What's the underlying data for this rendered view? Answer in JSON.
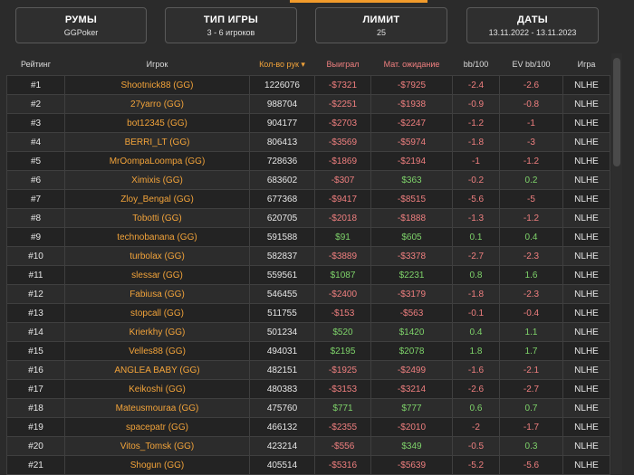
{
  "filters": [
    {
      "title": "РУМЫ",
      "value": "GGPoker"
    },
    {
      "title": "ТИП ИГРЫ",
      "value": "3 - 6 игроков"
    },
    {
      "title": "ЛИМИТ",
      "value": "25"
    },
    {
      "title": "ДАТЫ",
      "value": "13.11.2022 - 13.11.2023"
    }
  ],
  "columns": {
    "rank": "Рейтинг",
    "player": "Игрок",
    "hands": "Кол-во рук",
    "hands_sort": "▾",
    "won": "Выиграл",
    "ev": "Мат. ожидание",
    "bb100": "bb/100",
    "evbb100": "EV bb/100",
    "game": "Игра"
  },
  "colors": {
    "accent": "#f29b2b",
    "negative": "#ef7f7f",
    "positive": "#7ed36a"
  },
  "rows": [
    {
      "rank": "#1",
      "player": "Shootnick88 (GG)",
      "hands": "1226076",
      "won": "-$7321",
      "ev": "-$7925",
      "bb": "-2.4",
      "evbb": "-2.6",
      "game": "NLHE"
    },
    {
      "rank": "#2",
      "player": "27yarro (GG)",
      "hands": "988704",
      "won": "-$2251",
      "ev": "-$1938",
      "bb": "-0.9",
      "evbb": "-0.8",
      "game": "NLHE"
    },
    {
      "rank": "#3",
      "player": "bot12345 (GG)",
      "hands": "904177",
      "won": "-$2703",
      "ev": "-$2247",
      "bb": "-1.2",
      "evbb": "-1",
      "game": "NLHE"
    },
    {
      "rank": "#4",
      "player": "BERRI_LT (GG)",
      "hands": "806413",
      "won": "-$3569",
      "ev": "-$5974",
      "bb": "-1.8",
      "evbb": "-3",
      "game": "NLHE"
    },
    {
      "rank": "#5",
      "player": "MrOompaLoompa (GG)",
      "hands": "728636",
      "won": "-$1869",
      "ev": "-$2194",
      "bb": "-1",
      "evbb": "-1.2",
      "game": "NLHE"
    },
    {
      "rank": "#6",
      "player": "Ximixis (GG)",
      "hands": "683602",
      "won": "-$307",
      "ev": "$363",
      "bb": "-0.2",
      "evbb": "0.2",
      "game": "NLHE"
    },
    {
      "rank": "#7",
      "player": "Zloy_Bengal (GG)",
      "hands": "677368",
      "won": "-$9417",
      "ev": "-$8515",
      "bb": "-5.6",
      "evbb": "-5",
      "game": "NLHE"
    },
    {
      "rank": "#8",
      "player": "Tobotti (GG)",
      "hands": "620705",
      "won": "-$2018",
      "ev": "-$1888",
      "bb": "-1.3",
      "evbb": "-1.2",
      "game": "NLHE"
    },
    {
      "rank": "#9",
      "player": "technobanana (GG)",
      "hands": "591588",
      "won": "$91",
      "ev": "$605",
      "bb": "0.1",
      "evbb": "0.4",
      "game": "NLHE"
    },
    {
      "rank": "#10",
      "player": "turbolax (GG)",
      "hands": "582837",
      "won": "-$3889",
      "ev": "-$3378",
      "bb": "-2.7",
      "evbb": "-2.3",
      "game": "NLHE"
    },
    {
      "rank": "#11",
      "player": "slessar (GG)",
      "hands": "559561",
      "won": "$1087",
      "ev": "$2231",
      "bb": "0.8",
      "evbb": "1.6",
      "game": "NLHE"
    },
    {
      "rank": "#12",
      "player": "Fabiusa (GG)",
      "hands": "546455",
      "won": "-$2400",
      "ev": "-$3179",
      "bb": "-1.8",
      "evbb": "-2.3",
      "game": "NLHE"
    },
    {
      "rank": "#13",
      "player": "stopcall (GG)",
      "hands": "511755",
      "won": "-$153",
      "ev": "-$563",
      "bb": "-0.1",
      "evbb": "-0.4",
      "game": "NLHE"
    },
    {
      "rank": "#14",
      "player": "Krierkhy (GG)",
      "hands": "501234",
      "won": "$520",
      "ev": "$1420",
      "bb": "0.4",
      "evbb": "1.1",
      "game": "NLHE"
    },
    {
      "rank": "#15",
      "player": "Velles88 (GG)",
      "hands": "494031",
      "won": "$2195",
      "ev": "$2078",
      "bb": "1.8",
      "evbb": "1.7",
      "game": "NLHE"
    },
    {
      "rank": "#16",
      "player": "ANGLEA BABY (GG)",
      "hands": "482151",
      "won": "-$1925",
      "ev": "-$2499",
      "bb": "-1.6",
      "evbb": "-2.1",
      "game": "NLHE"
    },
    {
      "rank": "#17",
      "player": "Keikoshi (GG)",
      "hands": "480383",
      "won": "-$3153",
      "ev": "-$3214",
      "bb": "-2.6",
      "evbb": "-2.7",
      "game": "NLHE"
    },
    {
      "rank": "#18",
      "player": "Mateusmouraa (GG)",
      "hands": "475760",
      "won": "$771",
      "ev": "$777",
      "bb": "0.6",
      "evbb": "0.7",
      "game": "NLHE"
    },
    {
      "rank": "#19",
      "player": "spacepatr (GG)",
      "hands": "466132",
      "won": "-$2355",
      "ev": "-$2010",
      "bb": "-2",
      "evbb": "-1.7",
      "game": "NLHE"
    },
    {
      "rank": "#20",
      "player": "Vitos_Tomsk (GG)",
      "hands": "423214",
      "won": "-$556",
      "ev": "$349",
      "bb": "-0.5",
      "evbb": "0.3",
      "game": "NLHE"
    },
    {
      "rank": "#21",
      "player": "Shogun (GG)",
      "hands": "405514",
      "won": "-$5316",
      "ev": "-$5639",
      "bb": "-5.2",
      "evbb": "-5.6",
      "game": "NLHE"
    }
  ]
}
